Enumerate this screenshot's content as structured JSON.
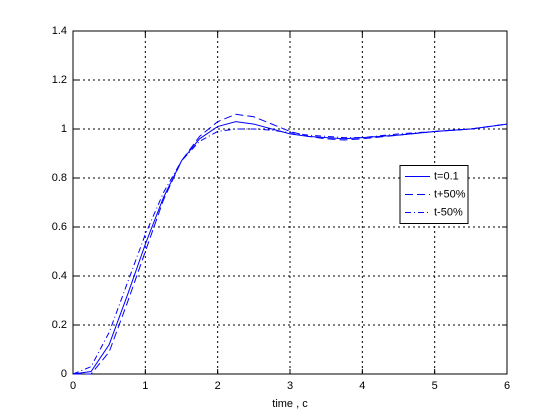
{
  "chart_data": {
    "type": "line",
    "xlabel": "time , c",
    "x": [
      0,
      0.25,
      0.5,
      0.75,
      1,
      1.25,
      1.5,
      1.75,
      2,
      2.25,
      2.5,
      2.75,
      3,
      3.25,
      3.5,
      3.75,
      4,
      4.5,
      5,
      5.5,
      6
    ],
    "series": [
      {
        "name": "t=0.1",
        "color": "#0000ff",
        "linestyle": "solid",
        "values": [
          0,
          0.01,
          0.12,
          0.32,
          0.53,
          0.72,
          0.87,
          0.96,
          1.01,
          1.03,
          1.02,
          1.0,
          0.98,
          0.97,
          0.965,
          0.96,
          0.965,
          0.975,
          0.99,
          1.0,
          1.02
        ]
      },
      {
        "name": "t+50%",
        "color": "#0000ff",
        "linestyle": "dashed",
        "values": [
          0,
          0.0,
          0.09,
          0.29,
          0.5,
          0.71,
          0.87,
          0.97,
          1.03,
          1.06,
          1.05,
          1.02,
          0.99,
          0.97,
          0.96,
          0.955,
          0.96,
          0.975,
          0.99,
          1.0,
          1.02
        ]
      },
      {
        "name": "t-50%",
        "color": "#0000ff",
        "linestyle": "dashdot",
        "values": [
          0,
          0.03,
          0.17,
          0.37,
          0.57,
          0.74,
          0.87,
          0.95,
          0.99,
          1.0,
          1.0,
          0.995,
          0.985,
          0.975,
          0.97,
          0.965,
          0.965,
          0.98,
          0.99,
          1.0,
          1.02
        ]
      }
    ],
    "xlim": [
      0,
      6
    ],
    "xticks": [
      0,
      1,
      2,
      3,
      4,
      5,
      6
    ],
    "ylim": [
      0,
      1.4
    ],
    "yticks": [
      0,
      0.2,
      0.4,
      0.6,
      0.8,
      1,
      1.2,
      1.4
    ],
    "grid": true,
    "legend": "right"
  }
}
